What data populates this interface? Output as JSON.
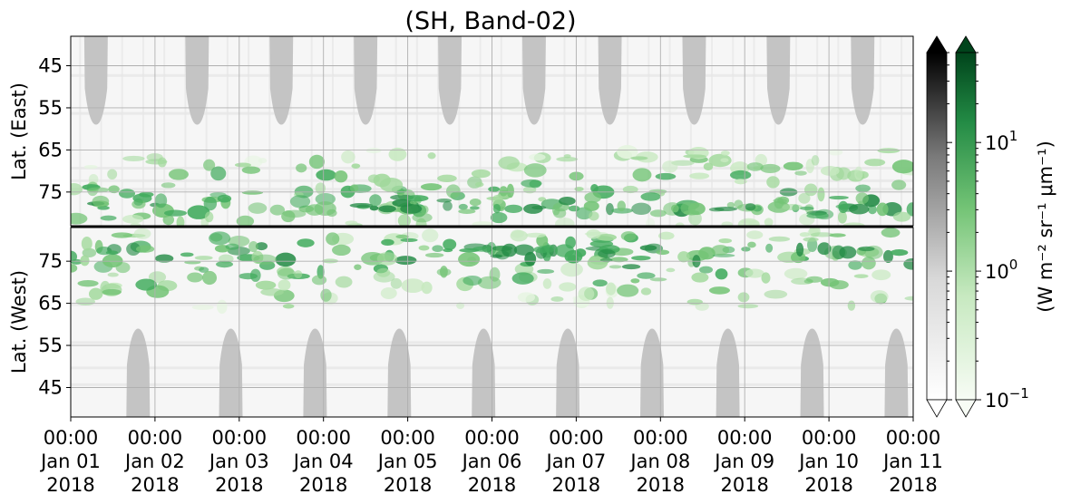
{
  "chart_data": {
    "type": "heatmap",
    "title": "(SH, Band-02)",
    "upper_panel": {
      "ylabel": "Lat. (East)",
      "yticks": [
        "45",
        "55",
        "65",
        "75"
      ],
      "ylim": [
        38,
        83
      ]
    },
    "lower_panel": {
      "ylabel": "Lat. (West)",
      "yticks": [
        "75",
        "65",
        "55",
        "45"
      ],
      "ylim": [
        83,
        38
      ]
    },
    "x_ticks": [
      {
        "time": "00:00",
        "date": "Jan 01",
        "year": "2018"
      },
      {
        "time": "00:00",
        "date": "Jan 02",
        "year": "2018"
      },
      {
        "time": "00:00",
        "date": "Jan 03",
        "year": "2018"
      },
      {
        "time": "00:00",
        "date": "Jan 04",
        "year": "2018"
      },
      {
        "time": "00:00",
        "date": "Jan 05",
        "year": "2018"
      },
      {
        "time": "00:00",
        "date": "Jan 06",
        "year": "2018"
      },
      {
        "time": "00:00",
        "date": "Jan 07",
        "year": "2018"
      },
      {
        "time": "00:00",
        "date": "Jan 08",
        "year": "2018"
      },
      {
        "time": "00:00",
        "date": "Jan 09",
        "year": "2018"
      },
      {
        "time": "00:00",
        "date": "Jan 10",
        "year": "2018"
      },
      {
        "time": "00:00",
        "date": "Jan 11",
        "year": "2018"
      }
    ],
    "colorbar": {
      "label": "(W m⁻² sr⁻¹ μm⁻¹)",
      "scale": "log",
      "range": [
        0.1,
        50
      ],
      "ticks": [
        {
          "value": 0.1,
          "base": "10",
          "exp": "−1"
        },
        {
          "value": 1,
          "base": "10",
          "exp": "0"
        },
        {
          "value": 10,
          "base": "10",
          "exp": "1"
        }
      ],
      "colormaps": [
        "Greys",
        "Greens"
      ],
      "extend": "both"
    },
    "colors": {
      "daylight_mask": "#c4c4c4",
      "gray_ramp": [
        "#ffffff",
        "#000000"
      ],
      "green_ramp": [
        "#f7fcf5",
        "#00441b"
      ],
      "grid": "#b0b0b0"
    },
    "upper_daylight_mask_centers_days": [
      0.3,
      1.5,
      2.5,
      3.5,
      4.5,
      5.5,
      6.4,
      7.4,
      8.4,
      9.4
    ],
    "lower_daylight_mask_centers_days": [
      0.8,
      1.9,
      2.9,
      3.9,
      4.9,
      5.9,
      6.9,
      7.8,
      8.8,
      9.8
    ],
    "lat_threshold_mask": 59,
    "aurora_bands": [
      {
        "start_day": 0.0,
        "end_day": 10.0,
        "lat_east": 79,
        "lat_west": 78,
        "peak": 3
      }
    ]
  }
}
